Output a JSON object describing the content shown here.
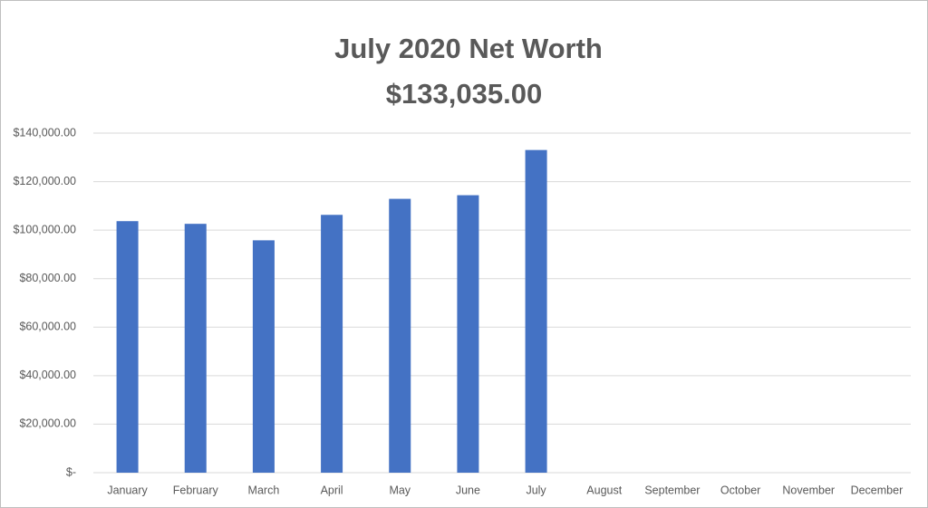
{
  "chart_data": {
    "type": "bar",
    "title": "July 2020 Net Worth",
    "subtitle": "$133,035.00",
    "categories": [
      "January",
      "February",
      "March",
      "April",
      "May",
      "June",
      "July",
      "August",
      "September",
      "October",
      "November",
      "December"
    ],
    "values": [
      103700,
      102600,
      95800,
      106300,
      112900,
      114400,
      133035,
      null,
      null,
      null,
      null,
      null
    ],
    "color": "#4472c4",
    "ylim": [
      0,
      140000
    ],
    "yticks": [
      {
        "value": 0,
        "label": "$-"
      },
      {
        "value": 20000,
        "label": "$20,000.00"
      },
      {
        "value": 40000,
        "label": "$40,000.00"
      },
      {
        "value": 60000,
        "label": "$60,000.00"
      },
      {
        "value": 80000,
        "label": "$80,000.00"
      },
      {
        "value": 100000,
        "label": "$100,000.00"
      },
      {
        "value": 120000,
        "label": "$120,000.00"
      },
      {
        "value": 140000,
        "label": "$140,000.00"
      }
    ],
    "grid": true
  }
}
